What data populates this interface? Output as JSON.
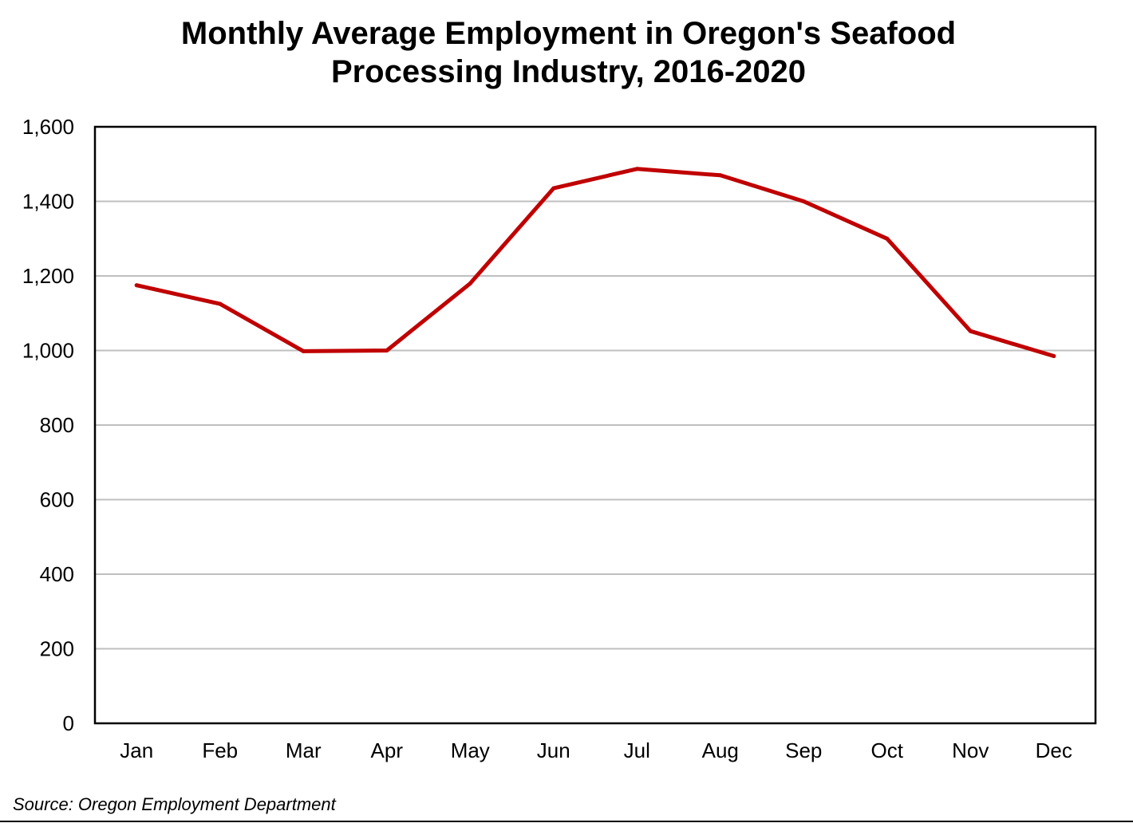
{
  "chart_data": {
    "type": "line",
    "title": [
      "Monthly Average Employment in Oregon's Seafood",
      "Processing Industry, 2016-2020"
    ],
    "xlabel": "",
    "ylabel": "",
    "categories": [
      "Jan",
      "Feb",
      "Mar",
      "Apr",
      "May",
      "Jun",
      "Jul",
      "Aug",
      "Sep",
      "Oct",
      "Nov",
      "Dec"
    ],
    "series": [
      {
        "values": [
          1175,
          1125,
          998,
          1000,
          1180,
          1435,
          1487,
          1470,
          1400,
          1300,
          1052,
          985
        ],
        "color": "#C00000"
      }
    ],
    "ylim": [
      0,
      1600
    ],
    "yticks": [
      0,
      200,
      400,
      600,
      800,
      1000,
      1200,
      1400,
      1600
    ],
    "ytick_labels": [
      "0",
      "200",
      "400",
      "600",
      "800",
      "1,000",
      "1,200",
      "1,400",
      "1,600"
    ],
    "grid": true,
    "grid_color": "#BFBFBF",
    "legend": "none",
    "source": "Source: Oregon Employment Department"
  }
}
